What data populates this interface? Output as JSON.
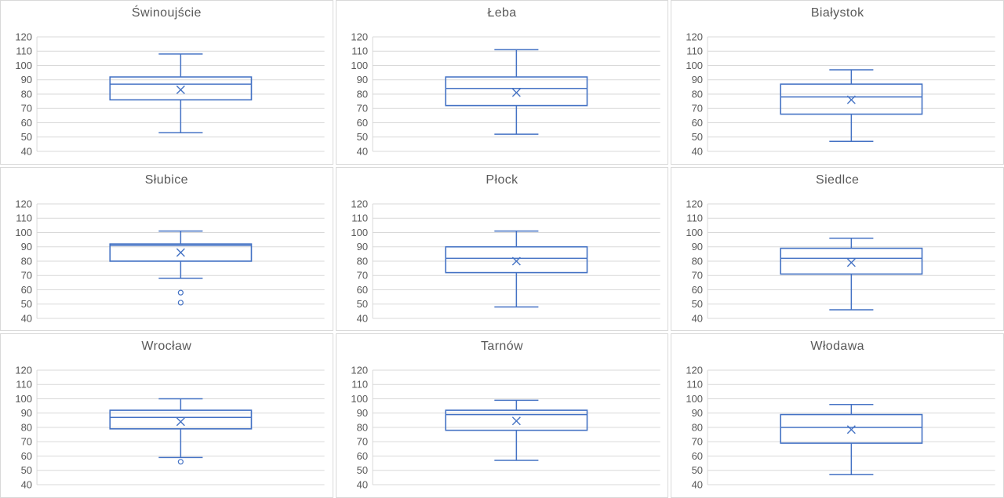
{
  "style": {
    "accent": "#4472C4",
    "title_color": "#595959",
    "tick_color": "#595959",
    "gridline_color": "#D9D9D9",
    "panel_border_color": "#D9D9D9",
    "background": "#FFFFFF"
  },
  "axis": {
    "min": 40,
    "max": 120,
    "step": 10,
    "tick_labels": [
      "120",
      "110",
      "100",
      "90",
      "80",
      "70",
      "60",
      "50",
      "40"
    ],
    "grid": true
  },
  "layout": {
    "rows": 3,
    "columns": 3,
    "legend": "none"
  },
  "chart_data": [
    {
      "type": "boxplot",
      "title": "Świnoujście",
      "ylim": [
        40,
        120
      ],
      "whisker_min": 53,
      "q1": 76,
      "median": 87,
      "mean": 83,
      "q3": 92,
      "whisker_max": 108,
      "outliers": []
    },
    {
      "type": "boxplot",
      "title": "Łeba",
      "ylim": [
        40,
        120
      ],
      "whisker_min": 52,
      "q1": 72,
      "median": 84,
      "mean": 81,
      "q3": 92,
      "whisker_max": 111,
      "outliers": []
    },
    {
      "type": "boxplot",
      "title": "Białystok",
      "ylim": [
        40,
        120
      ],
      "whisker_min": 47,
      "q1": 66,
      "median": 78,
      "mean": 76,
      "q3": 87,
      "whisker_max": 97,
      "outliers": []
    },
    {
      "type": "boxplot",
      "title": "Słubice",
      "ylim": [
        40,
        120
      ],
      "whisker_min": 68,
      "q1": 80,
      "median": 91,
      "mean": 86,
      "q3": 92,
      "whisker_max": 101,
      "outliers": [
        58,
        51
      ]
    },
    {
      "type": "boxplot",
      "title": "Płock",
      "ylim": [
        40,
        120
      ],
      "whisker_min": 48,
      "q1": 72,
      "median": 82,
      "mean": 80,
      "q3": 90,
      "whisker_max": 101,
      "outliers": []
    },
    {
      "type": "boxplot",
      "title": "Siedlce",
      "ylim": [
        40,
        120
      ],
      "whisker_min": 46,
      "q1": 71,
      "median": 82,
      "mean": 79,
      "q3": 89,
      "whisker_max": 96,
      "outliers": []
    },
    {
      "type": "boxplot",
      "title": "Wrocław",
      "ylim": [
        40,
        120
      ],
      "whisker_min": 59,
      "q1": 79,
      "median": 87,
      "mean": 84,
      "q3": 92,
      "whisker_max": 100,
      "outliers": [
        56
      ]
    },
    {
      "type": "boxplot",
      "title": "Tarnów",
      "ylim": [
        40,
        120
      ],
      "whisker_min": 57,
      "q1": 78,
      "median": 89,
      "mean": 84.5,
      "q3": 92,
      "whisker_max": 99,
      "outliers": []
    },
    {
      "type": "boxplot",
      "title": "Włodawa",
      "ylim": [
        40,
        120
      ],
      "whisker_min": 47,
      "q1": 69,
      "median": 80,
      "mean": 78.5,
      "q3": 89,
      "whisker_max": 96,
      "outliers": []
    }
  ]
}
